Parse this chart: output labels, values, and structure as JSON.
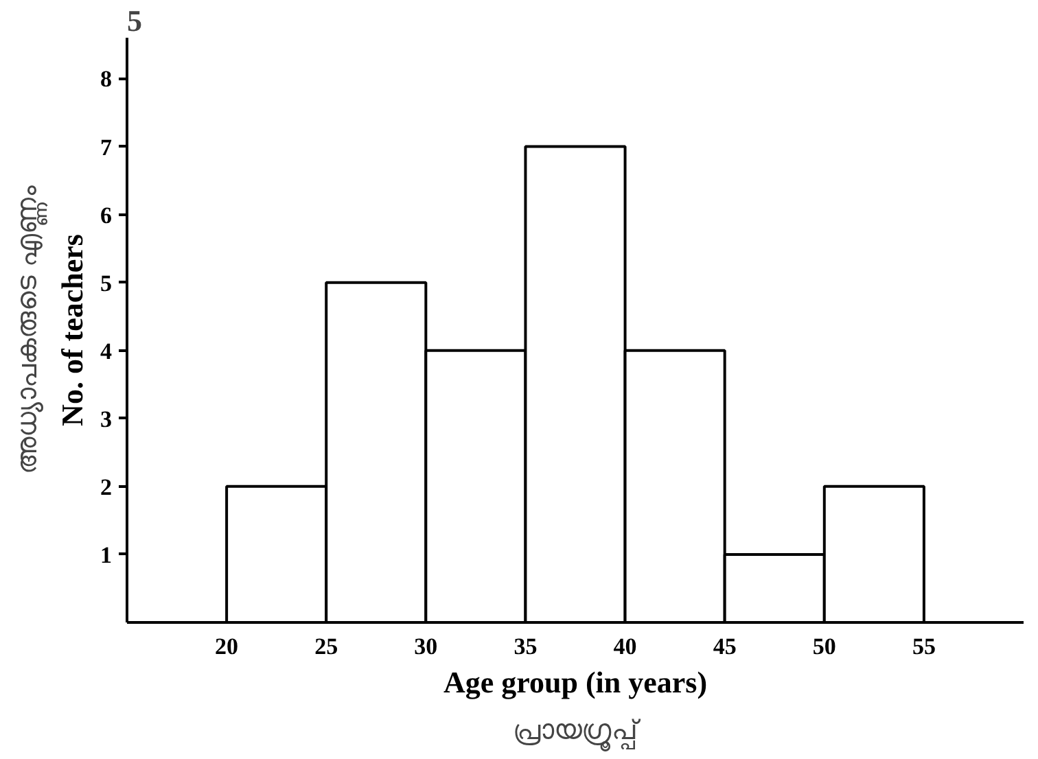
{
  "chart_data": {
    "type": "histogram",
    "xlabel": "Age group (in years)",
    "ylabel": "No. of teachers",
    "annotations": [
      "5",
      "അധ്യാപകരുടെ എണ്ണം",
      "പ്രായഗ്രൂപ്പ്"
    ],
    "bins": [
      20,
      25,
      30,
      35,
      40,
      45,
      50,
      55
    ],
    "values": [
      2,
      5,
      4,
      7,
      4,
      1,
      2
    ],
    "color": "#ffffff",
    "xlim": [
      15,
      60
    ],
    "ylim": [
      0,
      8.6
    ],
    "xticks": [
      20,
      25,
      30,
      35,
      40,
      45,
      50,
      55
    ],
    "yticks": [
      1,
      2,
      3,
      4,
      5,
      6,
      7,
      8
    ],
    "grid": false
  }
}
